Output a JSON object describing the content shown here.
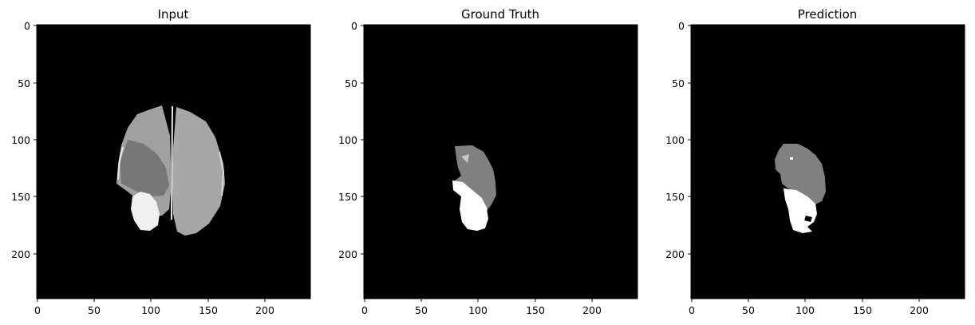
{
  "figure": {
    "panels": [
      {
        "title": "Input",
        "x_ticks": [
          "0",
          "50",
          "100",
          "150",
          "200"
        ],
        "y_ticks": [
          "0",
          "50",
          "100",
          "150",
          "200"
        ]
      },
      {
        "title": "Ground Truth",
        "x_ticks": [
          "0",
          "50",
          "100",
          "150",
          "200"
        ],
        "y_ticks": [
          "0",
          "50",
          "100",
          "150",
          "200"
        ]
      },
      {
        "title": "Prediction",
        "x_ticks": [
          "0",
          "50",
          "100",
          "150",
          "200"
        ],
        "y_ticks": [
          "0",
          "50",
          "100",
          "150",
          "200"
        ]
      }
    ],
    "image_extent": [
      0,
      240
    ],
    "colors": {
      "background": "#000000",
      "tumor_core": "#ffffff",
      "edema": "#808080"
    }
  }
}
